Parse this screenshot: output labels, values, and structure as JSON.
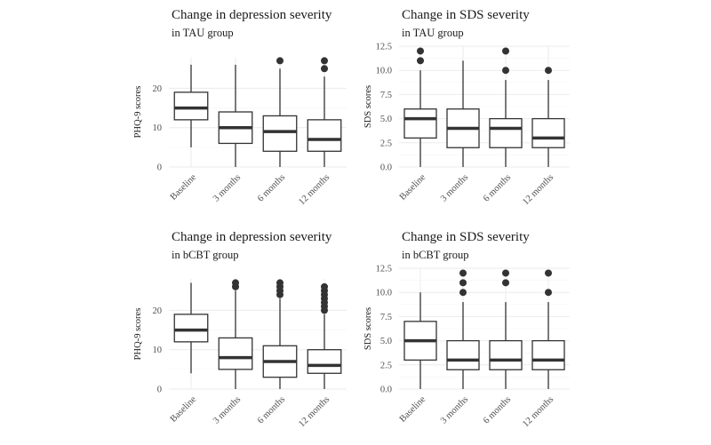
{
  "chart_data": [
    {
      "type": "boxplot",
      "title": "Change in depression severity",
      "subtitle": "in TAU group",
      "xlabel": "",
      "ylabel": "PHQ-9 scores",
      "categories": [
        "Baseline",
        "3 months",
        "6 months",
        "12 months"
      ],
      "ylim": [
        0,
        28
      ],
      "yticks": [
        0,
        10,
        20
      ],
      "ytick_labels": [
        "0",
        "10",
        "20"
      ],
      "grid": true,
      "boxes": [
        {
          "whisker_low": 5,
          "q1": 12,
          "median": 15,
          "q3": 19,
          "whisker_high": 26,
          "outliers": []
        },
        {
          "whisker_low": 0,
          "q1": 6,
          "median": 10,
          "q3": 14,
          "whisker_high": 26,
          "outliers": []
        },
        {
          "whisker_low": 0,
          "q1": 4,
          "median": 9,
          "q3": 13,
          "whisker_high": 25,
          "outliers": [
            27
          ]
        },
        {
          "whisker_low": 0,
          "q1": 4,
          "median": 7,
          "q3": 12,
          "whisker_high": 23,
          "outliers": [
            25,
            27
          ]
        }
      ]
    },
    {
      "type": "boxplot",
      "title": "Change in SDS severity",
      "subtitle": "in TAU group",
      "xlabel": "",
      "ylabel": "SDS scores",
      "categories": [
        "Baseline",
        "3 months",
        "6 months",
        "12 months"
      ],
      "ylim": [
        0,
        12.5
      ],
      "yticks": [
        0,
        2.5,
        5,
        7.5,
        10,
        12.5
      ],
      "ytick_labels": [
        "0.0",
        "2.5",
        "5.0",
        "7.5",
        "10.0",
        "12.5"
      ],
      "grid": true,
      "boxes": [
        {
          "whisker_low": 0,
          "q1": 3,
          "median": 5,
          "q3": 6,
          "whisker_high": 10,
          "outliers": [
            11,
            12
          ]
        },
        {
          "whisker_low": 0,
          "q1": 2,
          "median": 4,
          "q3": 6,
          "whisker_high": 11,
          "outliers": []
        },
        {
          "whisker_low": 0,
          "q1": 2,
          "median": 4,
          "q3": 5,
          "whisker_high": 9,
          "outliers": [
            10,
            12
          ]
        },
        {
          "whisker_low": 0,
          "q1": 2,
          "median": 3,
          "q3": 5,
          "whisker_high": 9,
          "outliers": [
            10
          ]
        }
      ]
    },
    {
      "type": "boxplot",
      "title": "Change in depression severity",
      "subtitle": "in bCBT group",
      "xlabel": "",
      "ylabel": "PHQ-9 scores",
      "categories": [
        "Baseline",
        "3 months",
        "6 months",
        "12 months"
      ],
      "ylim": [
        0,
        28
      ],
      "yticks": [
        0,
        10,
        20
      ],
      "ytick_labels": [
        "0",
        "10",
        "20"
      ],
      "grid": true,
      "boxes": [
        {
          "whisker_low": 4,
          "q1": 12,
          "median": 15,
          "q3": 19,
          "whisker_high": 27,
          "outliers": []
        },
        {
          "whisker_low": 0,
          "q1": 5,
          "median": 8,
          "q3": 13,
          "whisker_high": 25,
          "outliers": [
            26,
            27
          ]
        },
        {
          "whisker_low": 0,
          "q1": 3,
          "median": 7,
          "q3": 11,
          "whisker_high": 23,
          "outliers": [
            24,
            25,
            26,
            27
          ]
        },
        {
          "whisker_low": 0,
          "q1": 4,
          "median": 6,
          "q3": 10,
          "whisker_high": 19,
          "outliers": [
            20,
            21,
            22,
            23,
            24,
            25,
            26
          ]
        }
      ]
    },
    {
      "type": "boxplot",
      "title": "Change in SDS severity",
      "subtitle": "in bCBT group",
      "xlabel": "",
      "ylabel": "SDS scores",
      "categories": [
        "Baseline",
        "3 months",
        "6 months",
        "12 months"
      ],
      "ylim": [
        0,
        12.5
      ],
      "yticks": [
        0,
        2.5,
        5,
        7.5,
        10,
        12.5
      ],
      "ytick_labels": [
        "0.0",
        "2.5",
        "5.0",
        "7.5",
        "10.0",
        "12.5"
      ],
      "grid": true,
      "boxes": [
        {
          "whisker_low": 0,
          "q1": 3,
          "median": 5,
          "q3": 7,
          "whisker_high": 10,
          "outliers": []
        },
        {
          "whisker_low": 0,
          "q1": 2,
          "median": 3,
          "q3": 5,
          "whisker_high": 9,
          "outliers": [
            10,
            11,
            12
          ]
        },
        {
          "whisker_low": 0,
          "q1": 2,
          "median": 3,
          "q3": 5,
          "whisker_high": 9,
          "outliers": [
            11,
            12
          ]
        },
        {
          "whisker_low": 0,
          "q1": 2,
          "median": 3,
          "q3": 5,
          "whisker_high": 9,
          "outliers": [
            10,
            12
          ]
        }
      ]
    }
  ],
  "colors": {
    "box_stroke": "#333333",
    "box_fill": "#ffffff",
    "grid_major": "#ebebeb",
    "grid_minor": "#f5f5f5",
    "title_text": "#1a1a1a",
    "tick_text": "#4d4d4d",
    "outlier": "#333333"
  }
}
